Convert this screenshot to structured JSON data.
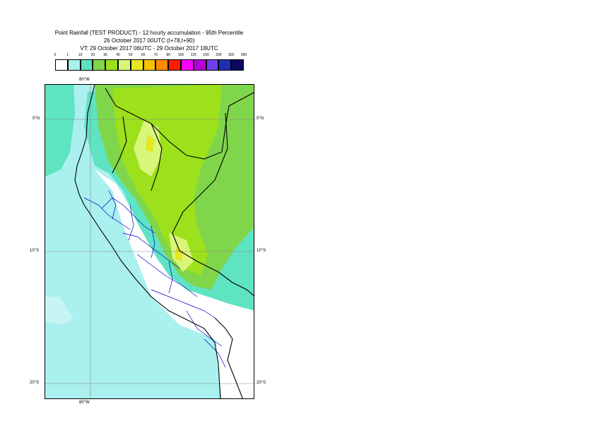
{
  "header": {
    "title_line1": "Point Rainfall (TEST PRODUCT) - 12 hourly accumulation - 95th Percentile",
    "title_line2": "26 October 2017 00UTC (t+78,t+90)",
    "title_line3": "VT: 29 October 2017 06UTC - 29 October 2017 18UTC"
  },
  "legend": {
    "ticks": [
      "0",
      "1",
      "10",
      "20",
      "30",
      "40",
      "50",
      "60",
      "70",
      "80",
      "100",
      "125",
      "150",
      "200",
      "300",
      "500"
    ],
    "colors": [
      "#ffffff",
      "#a9f0ee",
      "#5ee3c3",
      "#80d64a",
      "#9de01c",
      "#d8f67a",
      "#e6e622",
      "#f5c300",
      "#ff8a00",
      "#ff1a00",
      "#ff00ff",
      "#b400d8",
      "#7040f0",
      "#1e2fb4",
      "#0a0a64"
    ]
  },
  "map": {
    "labels": {
      "lon_top": "80°W",
      "lon_bottom": "80°W",
      "lat_0_left": "0°N",
      "lat_0_right": "0°N",
      "lat_10_left": "10°S",
      "lat_10_right": "10°S",
      "lat_20_left": "20°S",
      "lat_20_right": "20°S"
    },
    "colors": {
      "sea": "#a9f0ee",
      "light_rain": "#5ee3c3",
      "moderate": "#80d64a",
      "heavier": "#9de01c",
      "heavy": "#d8f67a",
      "peak": "#e6e622",
      "dry": "#ffffff",
      "country_border": "#000000",
      "region_border": "#0000cc",
      "grid": "#888888"
    }
  }
}
